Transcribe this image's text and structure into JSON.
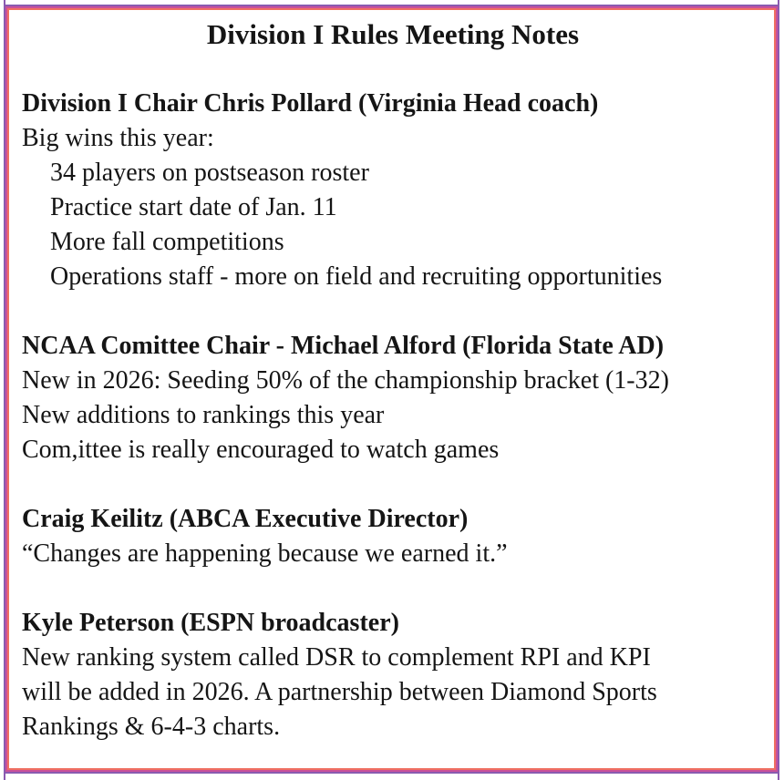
{
  "title": "Division I Rules Meeting Notes",
  "colors": {
    "border_outer_purple": "#8a5ab0",
    "border_middle_magenta": "#c8509b",
    "border_inner_salmon": "#ef6f61",
    "text": "#151515",
    "background": "#ffffff"
  },
  "sections": [
    {
      "heading": "Division I Chair Chris Pollard (Virginia Head coach)",
      "lines": [
        {
          "text": "Big wins this year:",
          "indent": false
        },
        {
          "text": "34 players on postseason roster",
          "indent": true
        },
        {
          "text": "Practice start date of Jan. 11",
          "indent": true
        },
        {
          "text": "More fall competitions",
          "indent": true
        },
        {
          "text": "Operations staff - more on field and recruiting opportunities",
          "indent": true
        }
      ]
    },
    {
      "heading": "NCAA Comittee Chair - Michael Alford (Florida State AD)",
      "lines": [
        {
          "text": "New in 2026: Seeding 50% of the championship bracket (1-32)",
          "indent": false
        },
        {
          "text": "New additions to rankings this year",
          "indent": false
        },
        {
          "text": "Com,ittee is really encouraged to watch games",
          "indent": false
        }
      ]
    },
    {
      "heading": "Craig Keilitz (ABCA Executive Director)",
      "lines": [
        {
          "text": "“Changes are happening because we earned it.”",
          "indent": false
        }
      ]
    },
    {
      "heading": "Kyle Peterson (ESPN broadcaster)",
      "lines": [
        {
          "text": "New ranking system called DSR to complement RPI and KPI",
          "indent": false
        },
        {
          "text": "will be added in 2026. A partnership between Diamond Sports",
          "indent": false
        },
        {
          "text": "Rankings & 6-4-3 charts.",
          "indent": false
        }
      ]
    }
  ]
}
